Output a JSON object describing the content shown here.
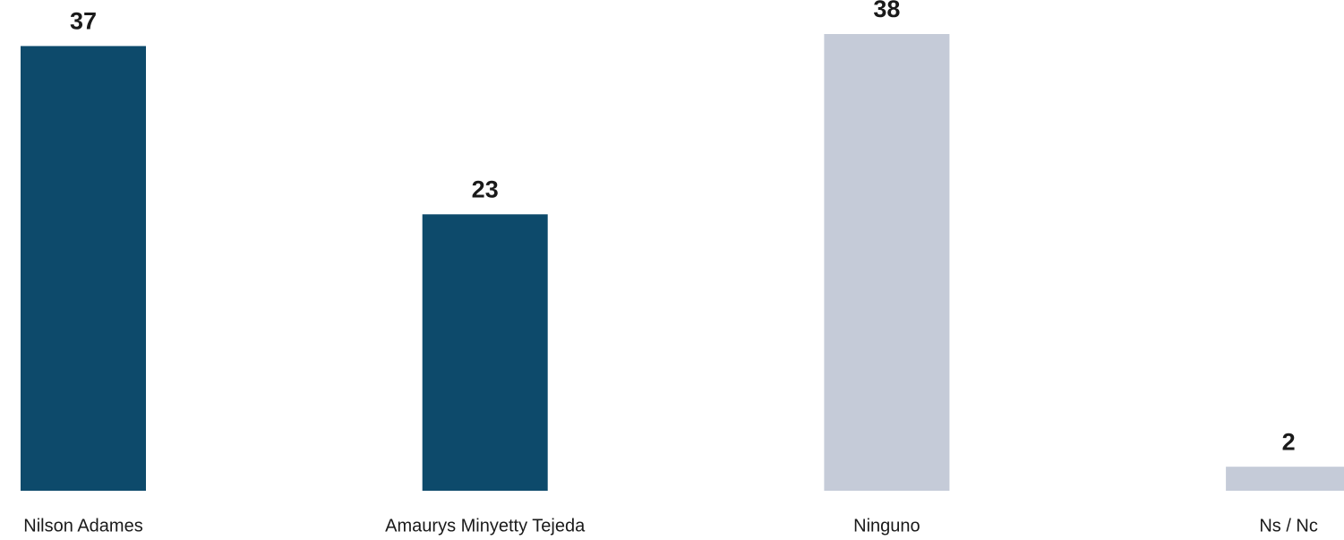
{
  "chart_data": {
    "type": "bar",
    "categories": [
      "Nilson Adames",
      "Amaurys Minyetty Tejeda",
      "Ninguno",
      "Ns / Nc"
    ],
    "values": [
      37,
      23,
      38,
      2
    ],
    "colors": [
      "#0d4a6b",
      "#0d4a6b",
      "#c5cbd8",
      "#c5cbd8"
    ]
  }
}
